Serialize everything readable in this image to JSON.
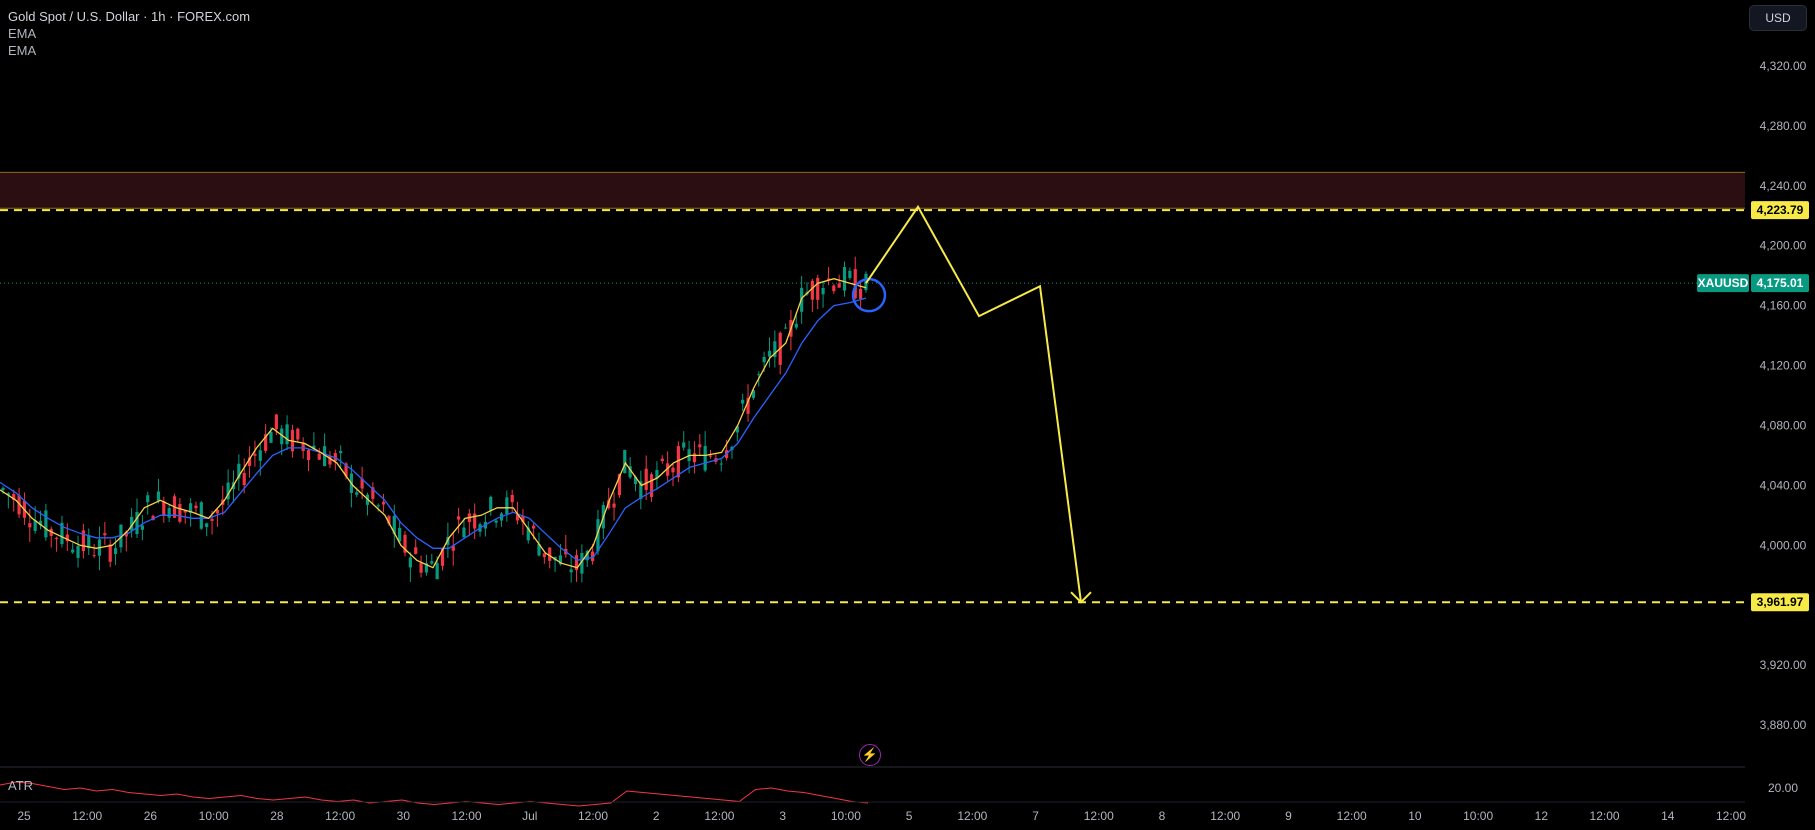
{
  "header": {
    "title": "Gold Spot / U.S. Dollar · 1h · FOREX.com",
    "indicators": [
      "EMA",
      "EMA"
    ]
  },
  "currency_button": {
    "label": "USD"
  },
  "price_axis": {
    "ticks": [
      "4,320.00",
      "4,280.00",
      "4,240.00",
      "4,200.00",
      "4,160.00",
      "4,120.00",
      "4,080.00",
      "4,040.00",
      "4,000.00",
      "3,960.00",
      "3,920.00",
      "3,880.00"
    ],
    "tick_values": [
      4320,
      4280,
      4240,
      4200,
      4160,
      4120,
      4080,
      4040,
      4000,
      3960,
      3920,
      3880
    ],
    "hidden_ticks": [
      "3,960.00"
    ]
  },
  "price_labels": {
    "resistance": {
      "text": "4,223.79",
      "value": 4223.79
    },
    "support": {
      "text": "3,961.97",
      "value": 3961.97
    },
    "last": {
      "symbol": "XAUUSD",
      "text": "4,175.01",
      "value": 4175.01
    }
  },
  "resistance_zone": {
    "top": 4249,
    "bottom": 4225
  },
  "time_axis": {
    "labels": [
      "25",
      "12:00",
      "26",
      "10:00",
      "28",
      "12:00",
      "30",
      "12:00",
      "Jul",
      "12:00",
      "2",
      "12:00",
      "3",
      "10:00",
      "5",
      "12:00",
      "7",
      "12:00",
      "8",
      "12:00",
      "9",
      "12:00",
      "10",
      "10:00",
      "12",
      "12:00",
      "14",
      "12:00"
    ]
  },
  "atr_pane": {
    "label": "ATR",
    "tick": "20.00"
  },
  "colors": {
    "background": "#000000",
    "up": "#089981",
    "down": "#f23645",
    "ema_fast": "#f7d346",
    "ema_slow": "#2962ff",
    "projection": "#f7ea48",
    "zone_fill": "#2b0e12",
    "atr": "#f23645",
    "last_price": "#089981"
  },
  "chart_data": {
    "type": "candlestick",
    "title": "Gold Spot / U.S. Dollar · 1h · FOREX.com",
    "ylim": [
      3860,
      4350
    ],
    "series": [
      {
        "name": "EMA",
        "kind": "ema",
        "values": [
          4037,
          4030,
          4018,
          4010,
          4005,
          4000,
          3998,
          4000,
          4010,
          4025,
          4030,
          4025,
          4022,
          4018,
          4030,
          4048,
          4065,
          4078,
          4070,
          4068,
          4062,
          4055,
          4040,
          4030,
          4020,
          4000,
          3990,
          3985,
          4005,
          4018,
          4020,
          4025,
          4025,
          4010,
          3995,
          3988,
          3985,
          4000,
          4030,
          4055,
          4040,
          4045,
          4055,
          4060,
          4060,
          4062,
          4080,
          4105,
          4125,
          4135,
          4165,
          4175,
          4178,
          4175,
          4172
        ]
      },
      {
        "name": "EMA",
        "kind": "ema",
        "values": [
          4042,
          4035,
          4025,
          4018,
          4012,
          4008,
          4005,
          4005,
          4008,
          4015,
          4020,
          4020,
          4018,
          4018,
          4022,
          4035,
          4048,
          4060,
          4065,
          4065,
          4062,
          4058,
          4050,
          4040,
          4030,
          4015,
          4005,
          3998,
          3998,
          4005,
          4012,
          4018,
          4022,
          4018,
          4008,
          3998,
          3990,
          3992,
          4008,
          4025,
          4032,
          4038,
          4045,
          4052,
          4055,
          4058,
          4068,
          4085,
          4100,
          4115,
          4135,
          4150,
          4160,
          4162,
          4165
        ]
      }
    ],
    "projection": {
      "name": "projection",
      "points": [
        {
          "bar": 66,
          "price": 4175
        },
        {
          "bar": 70,
          "price": 4226
        },
        {
          "bar": 74.5,
          "price": 4153
        },
        {
          "bar": 79,
          "price": 4173
        },
        {
          "bar": 82.5,
          "price": 3962
        }
      ]
    },
    "highlight_circle": {
      "bar": 65.5,
      "price": 4167
    },
    "atr": {
      "name": "ATR",
      "ylim": [
        10,
        40
      ],
      "values": [
        28,
        30,
        29,
        27,
        25,
        26,
        24,
        25,
        23,
        22,
        21,
        22,
        20,
        19,
        20,
        21,
        19,
        18,
        19,
        20,
        18,
        17,
        18,
        16,
        17,
        18,
        16,
        15,
        16,
        17,
        16,
        15,
        16,
        17,
        16,
        15,
        14,
        15,
        16,
        24,
        23,
        22,
        21,
        20,
        19,
        18,
        17,
        25,
        26,
        24,
        23,
        21,
        19,
        17,
        16
      ]
    }
  }
}
